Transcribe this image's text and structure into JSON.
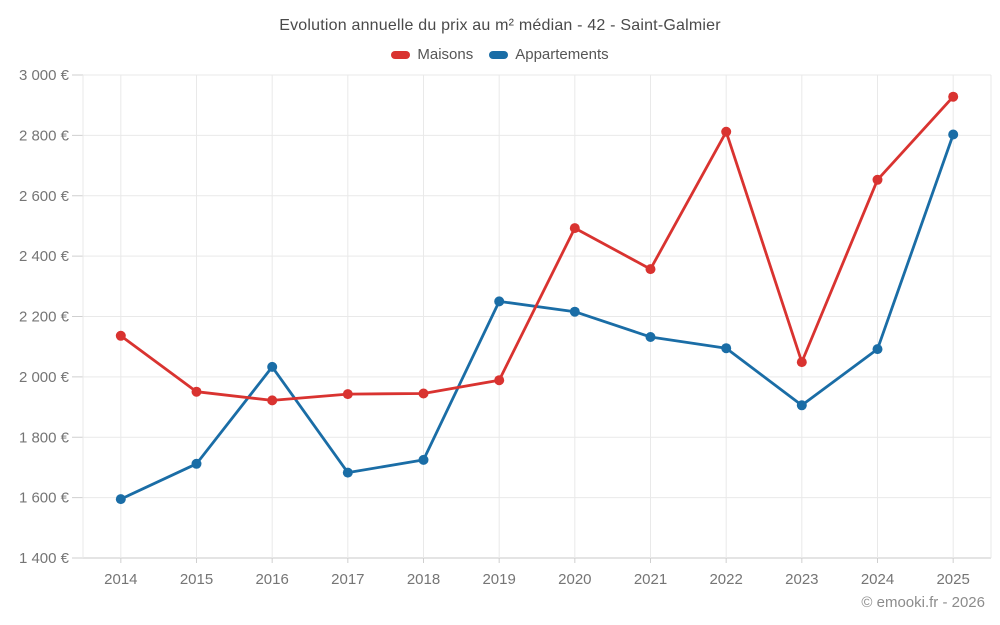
{
  "title": "Evolution annuelle du prix au m² médian - 42 - Saint-Galmier",
  "legend": [
    {
      "label": "Maisons",
      "color": "#d93330"
    },
    {
      "label": "Appartements",
      "color": "#1a6da6"
    }
  ],
  "footer": {
    "credit": "© emooki.fr - 2026"
  },
  "colors": {
    "maisons": "#d93330",
    "appartements": "#1a6da6",
    "grid": "#e9e9e9",
    "axis": "#c9c9c9",
    "tick": "#cfcfcf",
    "axis_text": "#757575",
    "title_text": "#4a4a4a"
  },
  "chart_data": {
    "type": "line",
    "title": "Evolution annuelle du prix au m² médian - 42 - Saint-Galmier",
    "categories": [
      "2014",
      "2015",
      "2016",
      "2017",
      "2018",
      "2019",
      "2020",
      "2021",
      "2022",
      "2023",
      "2024",
      "2025"
    ],
    "series": [
      {
        "name": "Maisons",
        "color": "#d93330",
        "values": [
          2136,
          1951,
          1922,
          1943,
          1945,
          1989,
          2493,
          2357,
          2812,
          2049,
          2653,
          2928
        ]
      },
      {
        "name": "Appartements",
        "color": "#1a6da6",
        "values": [
          1595,
          1712,
          2033,
          1683,
          1725,
          2250,
          2216,
          2132,
          2095,
          1906,
          2092,
          2803
        ]
      }
    ],
    "xlabel": "",
    "ylabel": "",
    "ylim": [
      1400,
      3000
    ],
    "ytick_step": 200,
    "yticks": [
      {
        "value": 1400,
        "label": "1 400 €"
      },
      {
        "value": 1600,
        "label": "1 600 €"
      },
      {
        "value": 1800,
        "label": "1 800 €"
      },
      {
        "value": 2000,
        "label": "2 000 €"
      },
      {
        "value": 2200,
        "label": "2 200 €"
      },
      {
        "value": 2400,
        "label": "2 400 €"
      },
      {
        "value": 2600,
        "label": "2 600 €"
      },
      {
        "value": 2800,
        "label": "2 800 €"
      },
      {
        "value": 3000,
        "label": "3 000 €"
      }
    ],
    "grid": true,
    "legend_position": "top",
    "unit": "€ / m²"
  }
}
